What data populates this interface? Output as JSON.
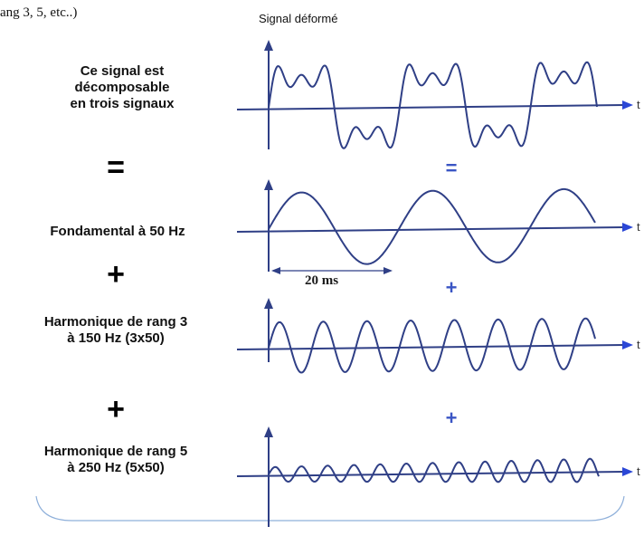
{
  "top_fragment": "ang 3, 5, etc..)",
  "plot_title": "Signal déformé",
  "description": [
    "Ce signal est",
    "décomposable",
    "en trois signaux"
  ],
  "equals_symbol": "=",
  "plus_symbol": "+",
  "fundamental_label": "Fondamental à 50 Hz",
  "harmonic3_label": [
    "Harmonique de rang 3",
    "à 150 Hz (3x50)"
  ],
  "harmonic5_label": [
    "Harmonique de rang 5",
    "à 250 Hz (5x50)"
  ],
  "period_label": "20 ms",
  "axis_label": "t",
  "colors": {
    "wave": "#2f3f86",
    "axis": "#2f3f86",
    "arrow": "#2b47d6",
    "operator_blue": "#3a55c4",
    "frame": "#8fb0da"
  }
}
